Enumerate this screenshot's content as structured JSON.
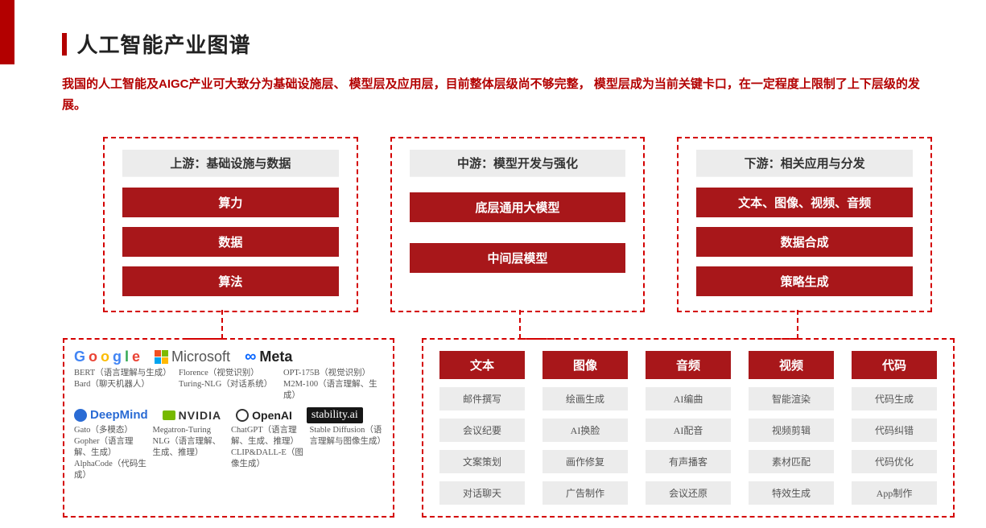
{
  "colors": {
    "accent": "#b30000",
    "pill_bg": "#a8171a",
    "dash_border": "#d40000",
    "grey_bg": "#ececec",
    "text_dark": "#222222",
    "text_grey": "#555555"
  },
  "title": "人工智能产业图谱",
  "subtitle": "我国的人工智能及AIGC产业可大致分为基础设施层、 模型层及应用层，目前整体层级尚不够完整， 模型层成为当前关键卡口，在一定程度上限制了上下层级的发展。",
  "columns": [
    {
      "header": "上游：基础设施与数据",
      "items": [
        "算力",
        "数据",
        "算法"
      ]
    },
    {
      "header": "中游：模型开发与强化",
      "items": [
        "底层通用大模型",
        "中间层模型"
      ]
    },
    {
      "header": "下游：相关应用与分发",
      "items": [
        "文本、图像、视频、音频",
        "数据合成",
        "策略生成"
      ]
    }
  ],
  "companies": {
    "row1": [
      {
        "name": "Google",
        "desc": "BERT（语言理解与生成）\nBard（聊天机器人）"
      },
      {
        "name": "Microsoft",
        "desc": "Florence（视觉识别）\nTuring-NLG（对话系统）"
      },
      {
        "name": "Meta",
        "desc": "OPT-175B（视觉识别）\nM2M-100（语言理解、生成）"
      }
    ],
    "row2": [
      {
        "name": "DeepMind",
        "desc": "Gato（多模态）\nGopher（语言理解、生成）\nAlphaCode（代码生成）"
      },
      {
        "name": "NVIDIA",
        "desc": "Megatron-Turing NLG（语言理解、生成、推理）"
      },
      {
        "name": "OpenAI",
        "desc": "ChatGPT（语言理解、生成、推理）\nCLIP&DALL-E（图像生成）"
      },
      {
        "name": "stability.ai",
        "desc": "Stable Diffusion（语言理解与图像生成）"
      }
    ]
  },
  "apps": [
    {
      "head": "文本",
      "items": [
        "邮件撰写",
        "会议纪要",
        "文案策划",
        "对话聊天"
      ]
    },
    {
      "head": "图像",
      "items": [
        "绘画生成",
        "AI换脸",
        "画作修复",
        "广告制作"
      ]
    },
    {
      "head": "音频",
      "items": [
        "AI编曲",
        "AI配音",
        "有声播客",
        "会议还原"
      ]
    },
    {
      "head": "视频",
      "items": [
        "智能渲染",
        "视频剪辑",
        "素材匹配",
        "特效生成"
      ]
    },
    {
      "head": "代码",
      "items": [
        "代码生成",
        "代码纠错",
        "代码优化",
        "App制作"
      ]
    }
  ]
}
